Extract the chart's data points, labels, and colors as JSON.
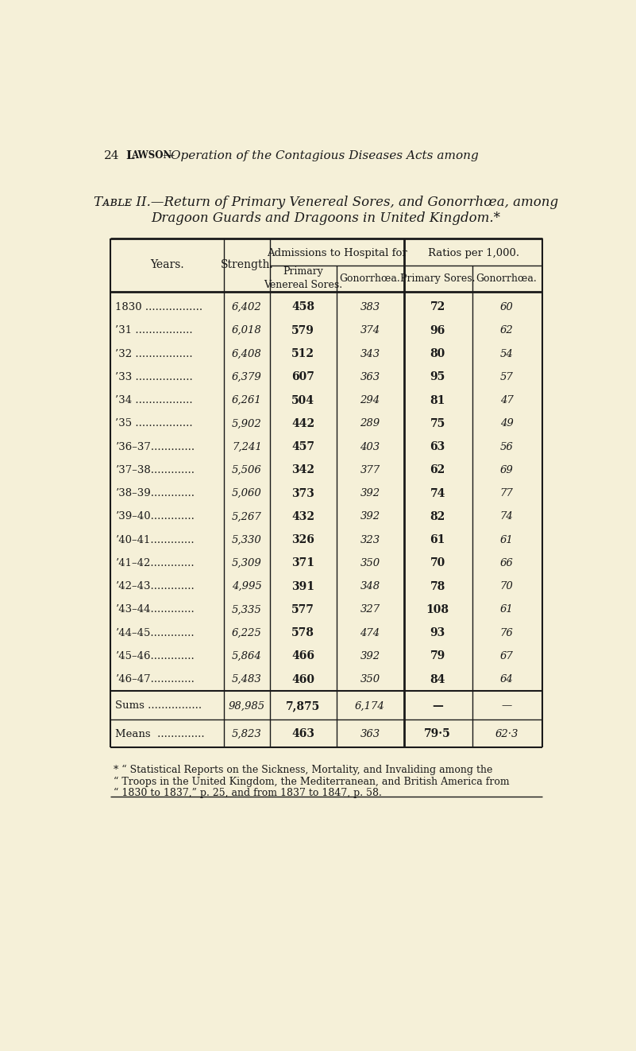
{
  "page_header_num": "24",
  "page_header_text": "Lawson—Operation of the Contagious Diseases Acts among",
  "table_title_line1": "Table II.—Return of Primary Venereal Sores, and Gonorrhœa, among",
  "table_title_line2": "Dragoon Guards and Dragoons in United Kingdom.*",
  "col_headers": {
    "years": "Years.",
    "strength": "Strength.",
    "admissions_label": "Admissions to Hospital for",
    "primary_venereal": "Primary\nVenereal Sores.",
    "gonorrhoea_adm": "Gonorrhœa.",
    "ratios_label": "Ratios per 1,000.",
    "primary_sores_ratio": "Primary Sores.",
    "gonorrhoea_ratio": "Gonorrhœa."
  },
  "rows": [
    {
      "year": "1830 .................",
      "strength": "6,402",
      "pv": "458",
      "gon": "383",
      "ps_ratio": "72",
      "gon_ratio": "60"
    },
    {
      "year": "’31 .................",
      "strength": "6,018",
      "pv": "579",
      "gon": "374",
      "ps_ratio": "96",
      "gon_ratio": "62"
    },
    {
      "year": "’32 .................",
      "strength": "6,408",
      "pv": "512",
      "gon": "343",
      "ps_ratio": "80",
      "gon_ratio": "54"
    },
    {
      "year": "’33 .................",
      "strength": "6,379",
      "pv": "607",
      "gon": "363",
      "ps_ratio": "95",
      "gon_ratio": "57"
    },
    {
      "year": "’34 .................",
      "strength": "6,261",
      "pv": "504",
      "gon": "294",
      "ps_ratio": "81",
      "gon_ratio": "47"
    },
    {
      "year": "’35 .................",
      "strength": "5,902",
      "pv": "442",
      "gon": "289",
      "ps_ratio": "75",
      "gon_ratio": "49"
    },
    {
      "year": "’36–37.............",
      "strength": "7,241",
      "pv": "457",
      "gon": "403",
      "ps_ratio": "63",
      "gon_ratio": "56"
    },
    {
      "year": "’37–38.............",
      "strength": "5,506",
      "pv": "342",
      "gon": "377",
      "ps_ratio": "62",
      "gon_ratio": "69"
    },
    {
      "year": "’38–39.............",
      "strength": "5,060",
      "pv": "373",
      "gon": "392",
      "ps_ratio": "74",
      "gon_ratio": "77"
    },
    {
      "year": "’39–40.............",
      "strength": "5,267",
      "pv": "432",
      "gon": "392",
      "ps_ratio": "82",
      "gon_ratio": "74"
    },
    {
      "year": "’40–41.............",
      "strength": "5,330",
      "pv": "326",
      "gon": "323",
      "ps_ratio": "61",
      "gon_ratio": "61"
    },
    {
      "year": "’41–42.............",
      "strength": "5,309",
      "pv": "371",
      "gon": "350",
      "ps_ratio": "70",
      "gon_ratio": "66"
    },
    {
      "year": "’42–43.............",
      "strength": "4,995",
      "pv": "391",
      "gon": "348",
      "ps_ratio": "78",
      "gon_ratio": "70"
    },
    {
      "year": "’43–44.............",
      "strength": "5,335",
      "pv": "577",
      "gon": "327",
      "ps_ratio": "108",
      "gon_ratio": "61"
    },
    {
      "year": "’44–45.............",
      "strength": "6,225",
      "pv": "578",
      "gon": "474",
      "ps_ratio": "93",
      "gon_ratio": "76"
    },
    {
      "year": "’45–46.............",
      "strength": "5,864",
      "pv": "466",
      "gon": "392",
      "ps_ratio": "79",
      "gon_ratio": "67"
    },
    {
      "year": "’46–47.............",
      "strength": "5,483",
      "pv": "460",
      "gon": "350",
      "ps_ratio": "84",
      "gon_ratio": "64"
    }
  ],
  "sums_row": {
    "label": "Sums ................",
    "strength": "98,985",
    "pv": "7,875",
    "gon": "6,174",
    "ps_ratio": "—",
    "gon_ratio": "—"
  },
  "means_row": {
    "label": "Means  ..............",
    "strength": "5,823",
    "pv": "463",
    "gon": "363",
    "ps_ratio": "79·5",
    "gon_ratio": "62·3"
  },
  "footnote": "* “ Statistical Reports on the Sickness, Mortality, and Invaliding among the\n“ Troops in the United Kingdom, the Mediterranean, and British America from\n“ 1830 to 1837,” p. 25, and from 1837 to 1847, p. 58.",
  "bg_color": "#f5f0d8",
  "text_color": "#1a1a1a",
  "line_color": "#1a1a1a"
}
